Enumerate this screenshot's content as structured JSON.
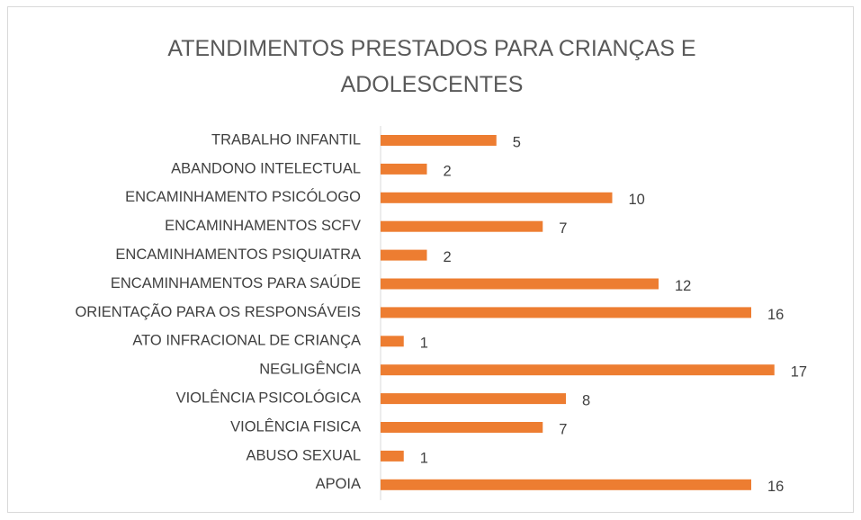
{
  "chart_data": {
    "type": "bar",
    "orientation": "horizontal",
    "title": "ATENDIMENTOS PRESTADOS PARA CRIANÇAS E ADOLESCENTES",
    "categories": [
      "TRABALHO INFANTIL",
      "ABANDONO INTELECTUAL",
      "ENCAMINHAMENTO PSICÓLOGO",
      "ENCAMINHAMENTOS SCFV",
      "ENCAMINHAMENTOS PSIQUIATRA",
      "ENCAMINHAMENTOS PARA SAÚDE",
      "ORIENTAÇÃO PARA OS RESPONSÁVEIS",
      "ATO INFRACIONAL DE CRIANÇA",
      "NEGLIGÊNCIA",
      "VIOLÊNCIA PSICOLÓGICA",
      "VIOLÊNCIA FISICA",
      "ABUSO SEXUAL",
      "APOIA"
    ],
    "values": [
      5,
      2,
      10,
      7,
      2,
      12,
      16,
      1,
      17,
      8,
      7,
      1,
      16
    ],
    "color": "#ed7d31"
  }
}
